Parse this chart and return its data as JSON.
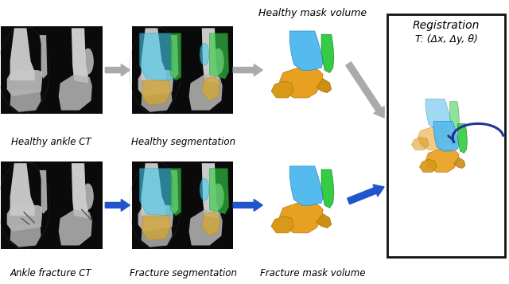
{
  "bg_color": "#ffffff",
  "labels": {
    "healthy_ct": "Healthy ankle CT",
    "healthy_seg": "Healthy segmentation",
    "healthy_mask": "Healthy mask volume",
    "fracture_ct": "Ankle fracture CT",
    "fracture_seg": "Fracture segmentation",
    "fracture_mask": "Fracture mask volume",
    "registration": "Registration",
    "transform": "T: (Δx, Δy, θ)"
  },
  "label_fontsize": 8.5,
  "tibia_color": "#44aaee",
  "fibula_color": "#33bb44",
  "talus_color": "#ddaa22",
  "arrow_gray": "#999999",
  "arrow_blue": "#2255cc",
  "box_edge": "#111111"
}
